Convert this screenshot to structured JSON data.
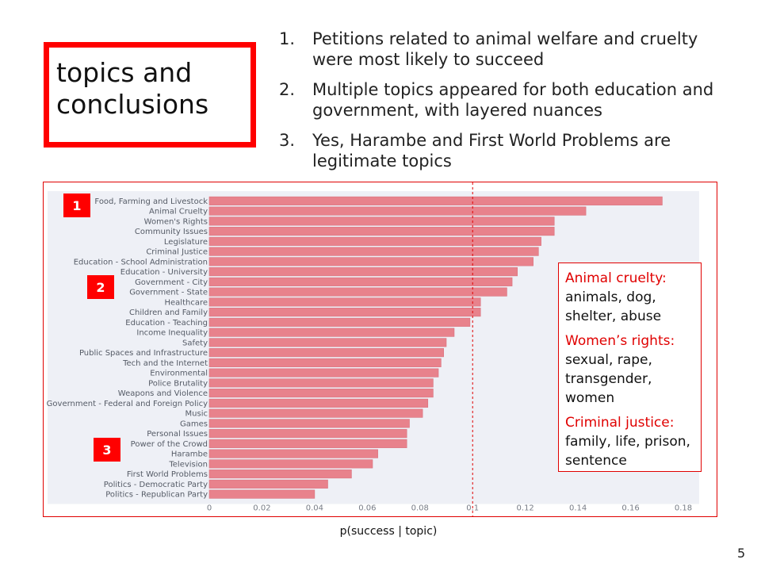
{
  "slide": {
    "title": "topics and conclusions",
    "page_number": "5",
    "points": [
      {
        "num": "1.",
        "text": "Petitions related to animal welfare and cruelty were most likely to succeed"
      },
      {
        "num": "2.",
        "text": "Multiple topics appeared for both education and government, with layered nuances"
      },
      {
        "num": "3.",
        "text": "Yes, Harambe and First World Problems are legitimate topics"
      }
    ],
    "badges": [
      "1",
      "2",
      "3"
    ],
    "annotations": [
      {
        "label": "Animal cruelty:",
        "words": "animals, dog, shelter, abuse"
      },
      {
        "label": "Women’s rights:",
        "words": "sexual, rape, transgender, women"
      },
      {
        "label": "Criminal justice:",
        "words": "family, life, prison, sentence"
      }
    ]
  },
  "colors": {
    "accent": "#ff0000",
    "bar": "#e8828c",
    "plot_bg": "#eef0f6",
    "refline": "#e00000"
  },
  "chart_data": {
    "type": "bar",
    "orientation": "horizontal",
    "title": "",
    "xlabel": "p(success | topic)",
    "ylabel": "",
    "xlim": [
      0,
      0.18
    ],
    "xticks": [
      0,
      0.02,
      0.04,
      0.06,
      0.08,
      0.1,
      0.12,
      0.14,
      0.16,
      0.18
    ],
    "xtick_labels": [
      "0",
      "0.02",
      "0.04",
      "0.06",
      "0.08",
      "0.1",
      "0.12",
      "0.14",
      "0.16",
      "0.18"
    ],
    "reference_line_x": 0.1,
    "categories": [
      "Food, Farming and Livestock",
      "Animal Cruelty",
      "Women's Rights",
      "Community Issues",
      "Legislature",
      "Criminal Justice",
      "Education - School Administration",
      "Education - University",
      "Government - City",
      "Government - State",
      "Healthcare",
      "Children and Family",
      "Education - Teaching",
      "Income Inequality",
      "Safety",
      "Public Spaces and Infrastructure",
      "Tech and the Internet",
      "Environmental",
      "Police Brutality",
      "Weapons and Violence",
      "Government - Federal and Foreign Policy",
      "Music",
      "Games",
      "Personal Issues",
      "Power of the Crowd",
      "Harambe",
      "Television",
      "First World Problems",
      "Politics - Democratic Party",
      "Politics - Republican Party"
    ],
    "values": [
      0.172,
      0.143,
      0.131,
      0.131,
      0.126,
      0.125,
      0.123,
      0.117,
      0.115,
      0.113,
      0.103,
      0.103,
      0.099,
      0.093,
      0.09,
      0.089,
      0.088,
      0.087,
      0.085,
      0.085,
      0.083,
      0.081,
      0.076,
      0.075,
      0.075,
      0.064,
      0.062,
      0.054,
      0.045,
      0.04
    ]
  }
}
